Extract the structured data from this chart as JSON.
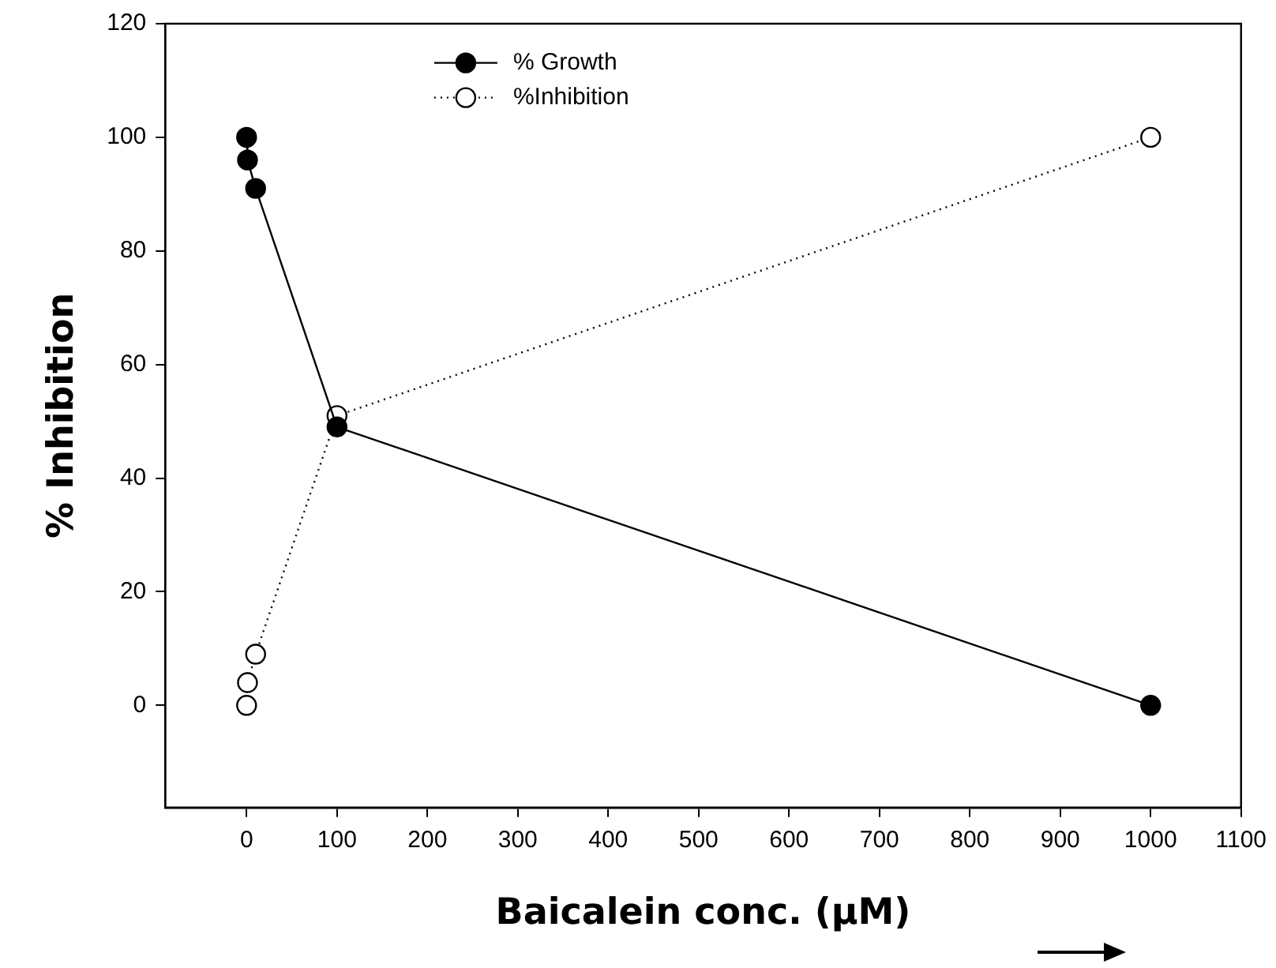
{
  "chart_data": {
    "type": "line",
    "xlabel": "Baicalein conc. (µM)",
    "ylabel": "% Inhibition",
    "xlim": [
      -90,
      1100
    ],
    "xticks": [
      0,
      100,
      200,
      300,
      400,
      500,
      600,
      700,
      800,
      900,
      1000,
      1100
    ],
    "ylim": [
      -18,
      120
    ],
    "yticks": [
      0,
      20,
      40,
      60,
      80,
      100,
      120
    ],
    "series": [
      {
        "name": "% Growth",
        "color": "#000000",
        "line_style": "solid",
        "x": [
          0,
          1,
          10,
          100,
          1000
        ],
        "values": [
          100,
          96,
          91,
          49,
          0
        ]
      },
      {
        "name": "%Inhibition",
        "color": "#000000",
        "line_style": "dotted",
        "x": [
          0,
          1,
          10,
          100,
          1000
        ],
        "values": [
          0,
          4,
          9,
          51,
          100
        ]
      }
    ],
    "marker": "circle",
    "grid": false,
    "legend": "top"
  }
}
